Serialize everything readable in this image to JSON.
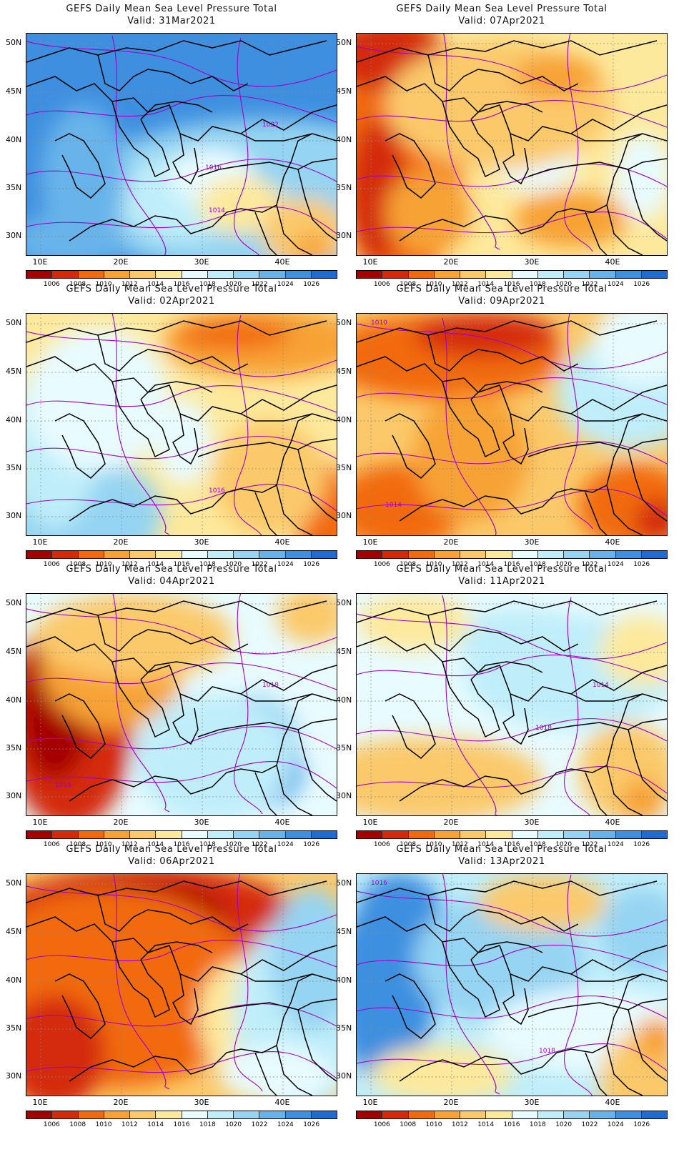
{
  "title": "GEFS Daily Mean Sea Level Pressure Total",
  "x_ticks": [
    "10E",
    "20E",
    "30E",
    "40E"
  ],
  "y_ticks": [
    "50N",
    "45N",
    "40N",
    "35N",
    "30N"
  ],
  "colorbar": {
    "colors": [
      "#a50000",
      "#d42a0a",
      "#f26a10",
      "#f7a235",
      "#fbc96a",
      "#fde99c",
      "#e8fbff",
      "#bfeefa",
      "#95d4f2",
      "#68b4ea",
      "#3e8fe0",
      "#1f6bd2"
    ],
    "labels": [
      "1006",
      "1008",
      "1010",
      "1012",
      "1014",
      "1016",
      "1018",
      "1020",
      "1022",
      "1024",
      "1026"
    ]
  },
  "panels": [
    {
      "valid": "Valid: 31Mar2021",
      "isobar_labels": [
        "1022",
        "1016",
        "1014"
      ]
    },
    {
      "valid": "Valid: 07Apr2021",
      "isobar_labels": []
    },
    {
      "valid": "Valid: 02Apr2021",
      "isobar_labels": [
        "1016"
      ]
    },
    {
      "valid": "Valid: 09Apr2021",
      "isobar_labels": [
        "1010",
        "1014"
      ]
    },
    {
      "valid": "Valid: 04Apr2021",
      "isobar_labels": [
        "1018",
        "1018"
      ]
    },
    {
      "valid": "Valid: 11Apr2021",
      "isobar_labels": [
        "1014",
        "1018"
      ]
    },
    {
      "valid": "Valid: 06Apr2021",
      "isobar_labels": []
    },
    {
      "valid": "Valid: 13Apr2021",
      "isobar_labels": [
        "1018",
        "1016"
      ]
    }
  ]
}
